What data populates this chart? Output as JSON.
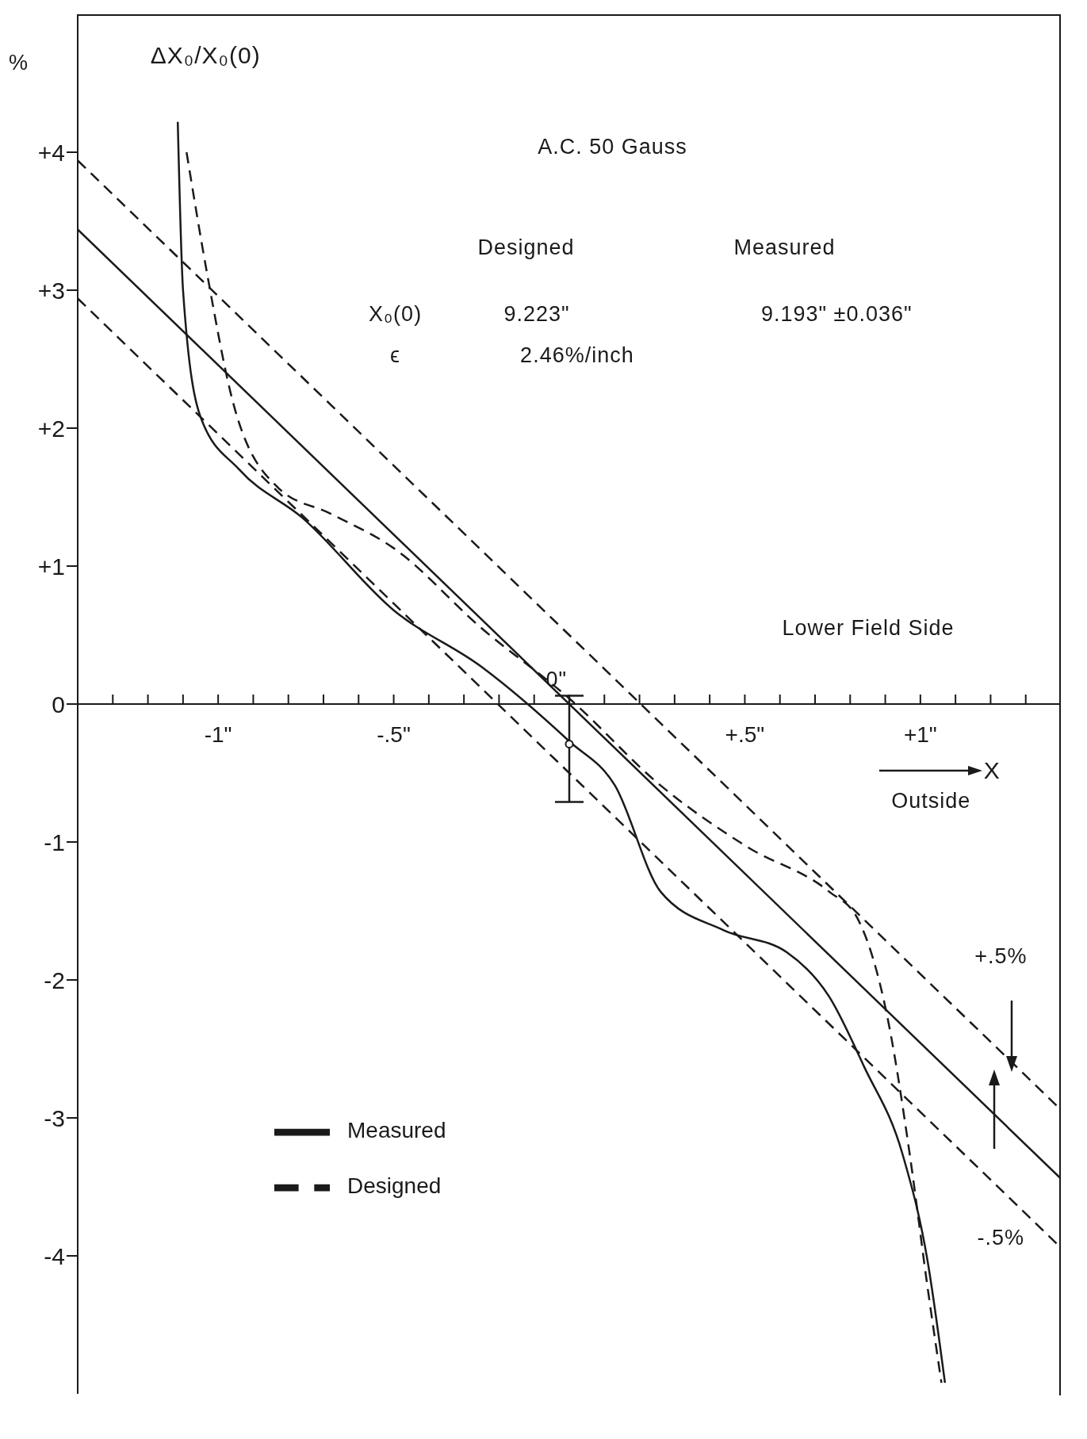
{
  "chart_data": {
    "type": "line",
    "title": "A.C. 50 Gauss",
    "ylabel": "ΔX₀/X₀(0)",
    "xlabel": "X",
    "annotations": [
      "%",
      "Designed",
      "Measured",
      "X₀(0)",
      "9.223\"",
      "9.193\" ±0.036\"",
      "ϵ",
      "2.46%/inch",
      "Lower Field Side",
      "Outside",
      "+.5%",
      "-.5%",
      "0\""
    ],
    "xlim": [
      -1.4,
      1.4
    ],
    "ylim": [
      -5,
      5
    ],
    "xticks": [
      {
        "value": -1.3,
        "label": null
      },
      {
        "value": -1.2,
        "label": null
      },
      {
        "value": -1.1,
        "label": null
      },
      {
        "value": -1,
        "label": "-1\""
      },
      {
        "value": -0.9,
        "label": null
      },
      {
        "value": -0.8,
        "label": null
      },
      {
        "value": -0.7,
        "label": null
      },
      {
        "value": -0.6,
        "label": null
      },
      {
        "value": -0.5,
        "label": "-.5\""
      },
      {
        "value": -0.4,
        "label": null
      },
      {
        "value": -0.3,
        "label": null
      },
      {
        "value": -0.2,
        "label": null
      },
      {
        "value": -0.1,
        "label": null
      },
      {
        "value": 0,
        "label": null
      },
      {
        "value": 0.1,
        "label": null
      },
      {
        "value": 0.2,
        "label": null
      },
      {
        "value": 0.3,
        "label": null
      },
      {
        "value": 0.4,
        "label": null
      },
      {
        "value": 0.5,
        "label": "+.5\""
      },
      {
        "value": 0.6,
        "label": null
      },
      {
        "value": 0.7,
        "label": null
      },
      {
        "value": 0.8,
        "label": null
      },
      {
        "value": 0.9,
        "label": null
      },
      {
        "value": 1,
        "label": "+1\""
      },
      {
        "value": 1.1,
        "label": null
      },
      {
        "value": 1.2,
        "label": null
      },
      {
        "value": 1.3,
        "label": null
      }
    ],
    "yticks": [
      {
        "value": 4,
        "label": "+4"
      },
      {
        "value": 3,
        "label": "+3"
      },
      {
        "value": 2,
        "label": "+2"
      },
      {
        "value": 1,
        "label": "+1"
      },
      0,
      -1,
      -2,
      -3,
      -4
    ],
    "legend": "bottom left",
    "marker": "none",
    "series": [
      {
        "name": "Measured",
        "color": "#1a1a1a",
        "line_style": "solid",
        "x": [
          -1.115,
          -1.1,
          -1.05,
          -0.94,
          -0.76,
          -0.5,
          -0.25,
          0,
          0.13,
          0.26,
          0.44,
          0.62,
          0.74,
          0.84,
          0.95,
          1.02,
          1.07
        ],
        "values": [
          4.22,
          3.0,
          2.08,
          1.7,
          1.35,
          0.68,
          0.27,
          -0.27,
          -0.59,
          -1.36,
          -1.64,
          -1.8,
          -2.12,
          -2.63,
          -3.27,
          -4.03,
          -4.92
        ]
      },
      {
        "name": "Designed",
        "color": "#1a1a1a",
        "line_style": "dashed",
        "x": [
          -1.09,
          -1.03,
          -0.96,
          -0.83,
          -0.68,
          -0.5,
          -0.25,
          0,
          0.26,
          0.51,
          0.74,
          0.82,
          0.91,
          0.97,
          1.02,
          1.06
        ],
        "values": [
          4.0,
          3.1,
          2.21,
          1.57,
          1.38,
          1.13,
          0.55,
          0.04,
          -0.59,
          -1.04,
          -1.36,
          -1.55,
          -2.32,
          -3.27,
          -4.22,
          -4.92
        ]
      },
      {
        "color": "#1a1a1a",
        "line_style": "solid",
        "x": [
          -1.4,
          1.4
        ],
        "values": [
          3.44,
          -3.44
        ]
      },
      {
        "color": "#1a1a1a",
        "line_style": "dashed",
        "x": [
          -1.4,
          1.4
        ],
        "values": [
          3.94,
          -2.94
        ]
      },
      {
        "color": "#1a1a1a",
        "line_style": "dashed",
        "x": [
          -1.4,
          1.4
        ],
        "values": [
          2.94,
          -3.94
        ]
      },
      {
        "type": "scatter",
        "color": "#1a1a1a",
        "marker": "circle",
        "x": [
          0
        ],
        "values": [
          -0.29
        ],
        "errors": [
          [
            -0.71,
            0.06
          ]
        ]
      }
    ]
  }
}
